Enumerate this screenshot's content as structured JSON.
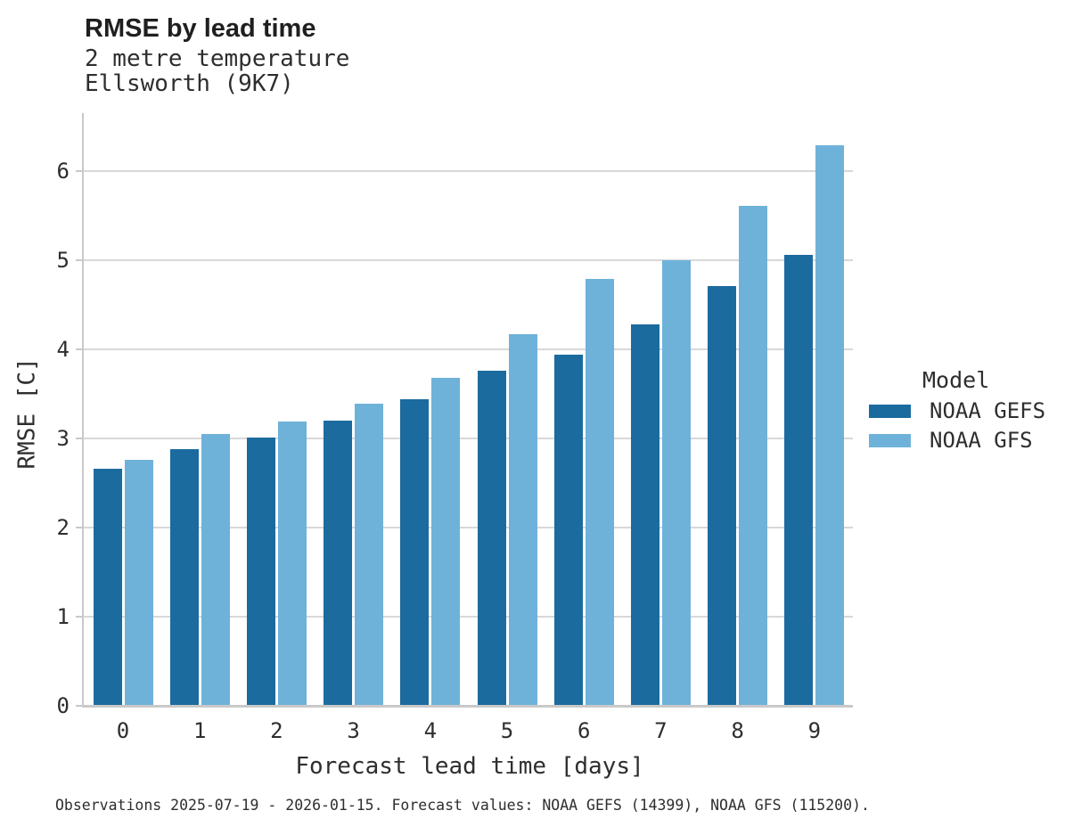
{
  "header": {
    "title": "RMSE by lead time",
    "subtitle_line1": "2 metre temperature",
    "subtitle_line2": "Ellsworth (9K7)"
  },
  "legend": {
    "title": "Model",
    "items": [
      {
        "label": "NOAA GEFS",
        "color": "#1b6b9e"
      },
      {
        "label": "NOAA GFS",
        "color": "#6eb2d9"
      }
    ]
  },
  "caption": "Observations 2025-07-19 - 2026-01-15. Forecast values: NOAA GEFS (14399), NOAA GFS (115200).",
  "chart_data": {
    "type": "bar",
    "title": "RMSE by lead time",
    "subtitle": [
      "2 metre temperature",
      "Ellsworth (9K7)"
    ],
    "xlabel": "Forecast lead time [days]",
    "ylabel": "RMSE [C]",
    "categories": [
      "0",
      "1",
      "2",
      "3",
      "4",
      "5",
      "6",
      "7",
      "8",
      "9"
    ],
    "series": [
      {
        "name": "NOAA GEFS",
        "color": "#1b6b9e",
        "values": [
          2.66,
          2.88,
          3.01,
          3.2,
          3.44,
          3.76,
          3.94,
          4.28,
          4.71,
          5.06
        ]
      },
      {
        "name": "NOAA GFS",
        "color": "#6eb2d9",
        "values": [
          2.76,
          3.05,
          3.19,
          3.39,
          3.68,
          4.17,
          4.79,
          5.0,
          5.61,
          6.29
        ]
      }
    ],
    "ylim": [
      0,
      6.65
    ],
    "yticks": [
      0,
      1,
      2,
      3,
      4,
      5,
      6
    ],
    "grid": true,
    "legend_position": "right"
  },
  "colors": {
    "grid": "#d8d8d8",
    "spine": "#c9c9c9",
    "text": "#2e2e2e",
    "title": "#1f1f1f",
    "background": "#ffffff"
  }
}
